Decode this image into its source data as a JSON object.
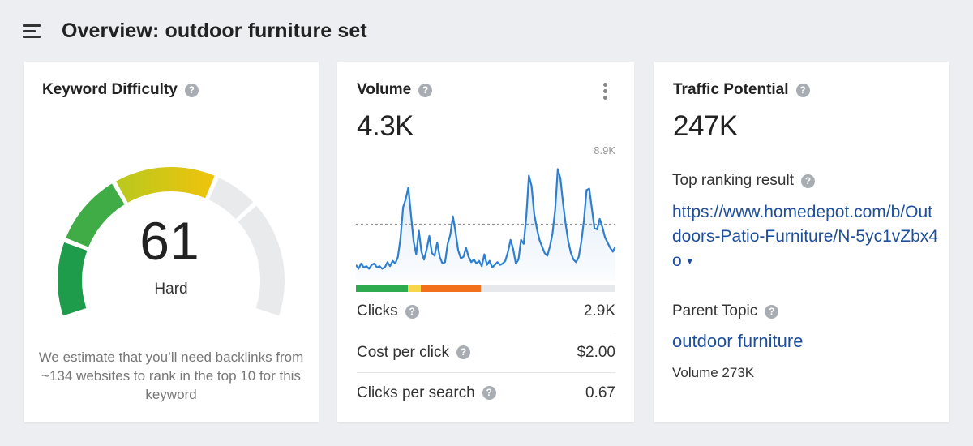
{
  "header": {
    "title": "Overview: outdoor furniture set",
    "menu_icon": "menu-icon"
  },
  "keyword_difficulty": {
    "title": "Keyword Difficulty",
    "score": "61",
    "score_value": 61,
    "label": "Hard",
    "description": "We estimate that you’ll need backlinks from ~134 websites to rank in the top 10 for this keyword",
    "colors": {
      "green_dark": "#1e9b4b",
      "green": "#3fac45",
      "yellow_green": "#b8c91e",
      "yellow": "#f0c30c",
      "empty": "#e9eaec"
    }
  },
  "volume": {
    "title": "Volume",
    "value": "4.3K",
    "chart_max_label": "8.9K",
    "chart_data": {
      "type": "area",
      "ymax": 8900,
      "average": 4300,
      "values": [
        1200,
        900,
        1300,
        1000,
        1100,
        900,
        1200,
        1300,
        1000,
        1100,
        900,
        1000,
        1400,
        1100,
        1500,
        1300,
        1800,
        3200,
        5600,
        6200,
        7100,
        5000,
        3000,
        2000,
        3800,
        2200,
        1600,
        2400,
        3400,
        2100,
        1900,
        2900,
        1800,
        1300,
        1400,
        2800,
        3500,
        4900,
        3700,
        2300,
        1700,
        1800,
        2500,
        1800,
        1400,
        1600,
        1300,
        1500,
        1100,
        2000,
        1200,
        1500,
        1000,
        1200,
        1400,
        1200,
        1300,
        1500,
        2200,
        3100,
        2400,
        1300,
        1600,
        3100,
        2800,
        4900,
        8000,
        7200,
        5100,
        4000,
        3100,
        2600,
        2100,
        1900,
        2600,
        3600,
        5400,
        8500,
        7800,
        5900,
        4300,
        3000,
        2100,
        1600,
        1400,
        1800,
        3000,
        4600,
        6900,
        7000,
        5500,
        4000,
        3900,
        4700,
        4100,
        3300,
        2900,
        2500,
        2200,
        2600
      ]
    },
    "cps_bar": [
      {
        "percent": 20,
        "color": "#2eaa4f"
      },
      {
        "percent": 5,
        "color": "#f7d64a"
      },
      {
        "percent": 23,
        "color": "#f26f1c"
      },
      {
        "percent": 52,
        "color": "#e6e8eb"
      }
    ],
    "metrics": {
      "clicks_label": "Clicks",
      "clicks_value": "2.9K",
      "cpc_label": "Cost per click",
      "cpc_value": "$2.00",
      "cps_label": "Clicks per search",
      "cps_value": "0.67"
    },
    "line_color": "#2f7fd1"
  },
  "traffic_potential": {
    "title": "Traffic Potential",
    "value": "247K",
    "top_result_label": "Top ranking result",
    "top_result_url": "https://www.homedepot.com/b/Outdoors-Patio-Furniture/N-5yc1vZbx4o",
    "parent_topic_label": "Parent Topic",
    "parent_topic": "outdoor furniture",
    "parent_volume": "Volume 273K"
  }
}
